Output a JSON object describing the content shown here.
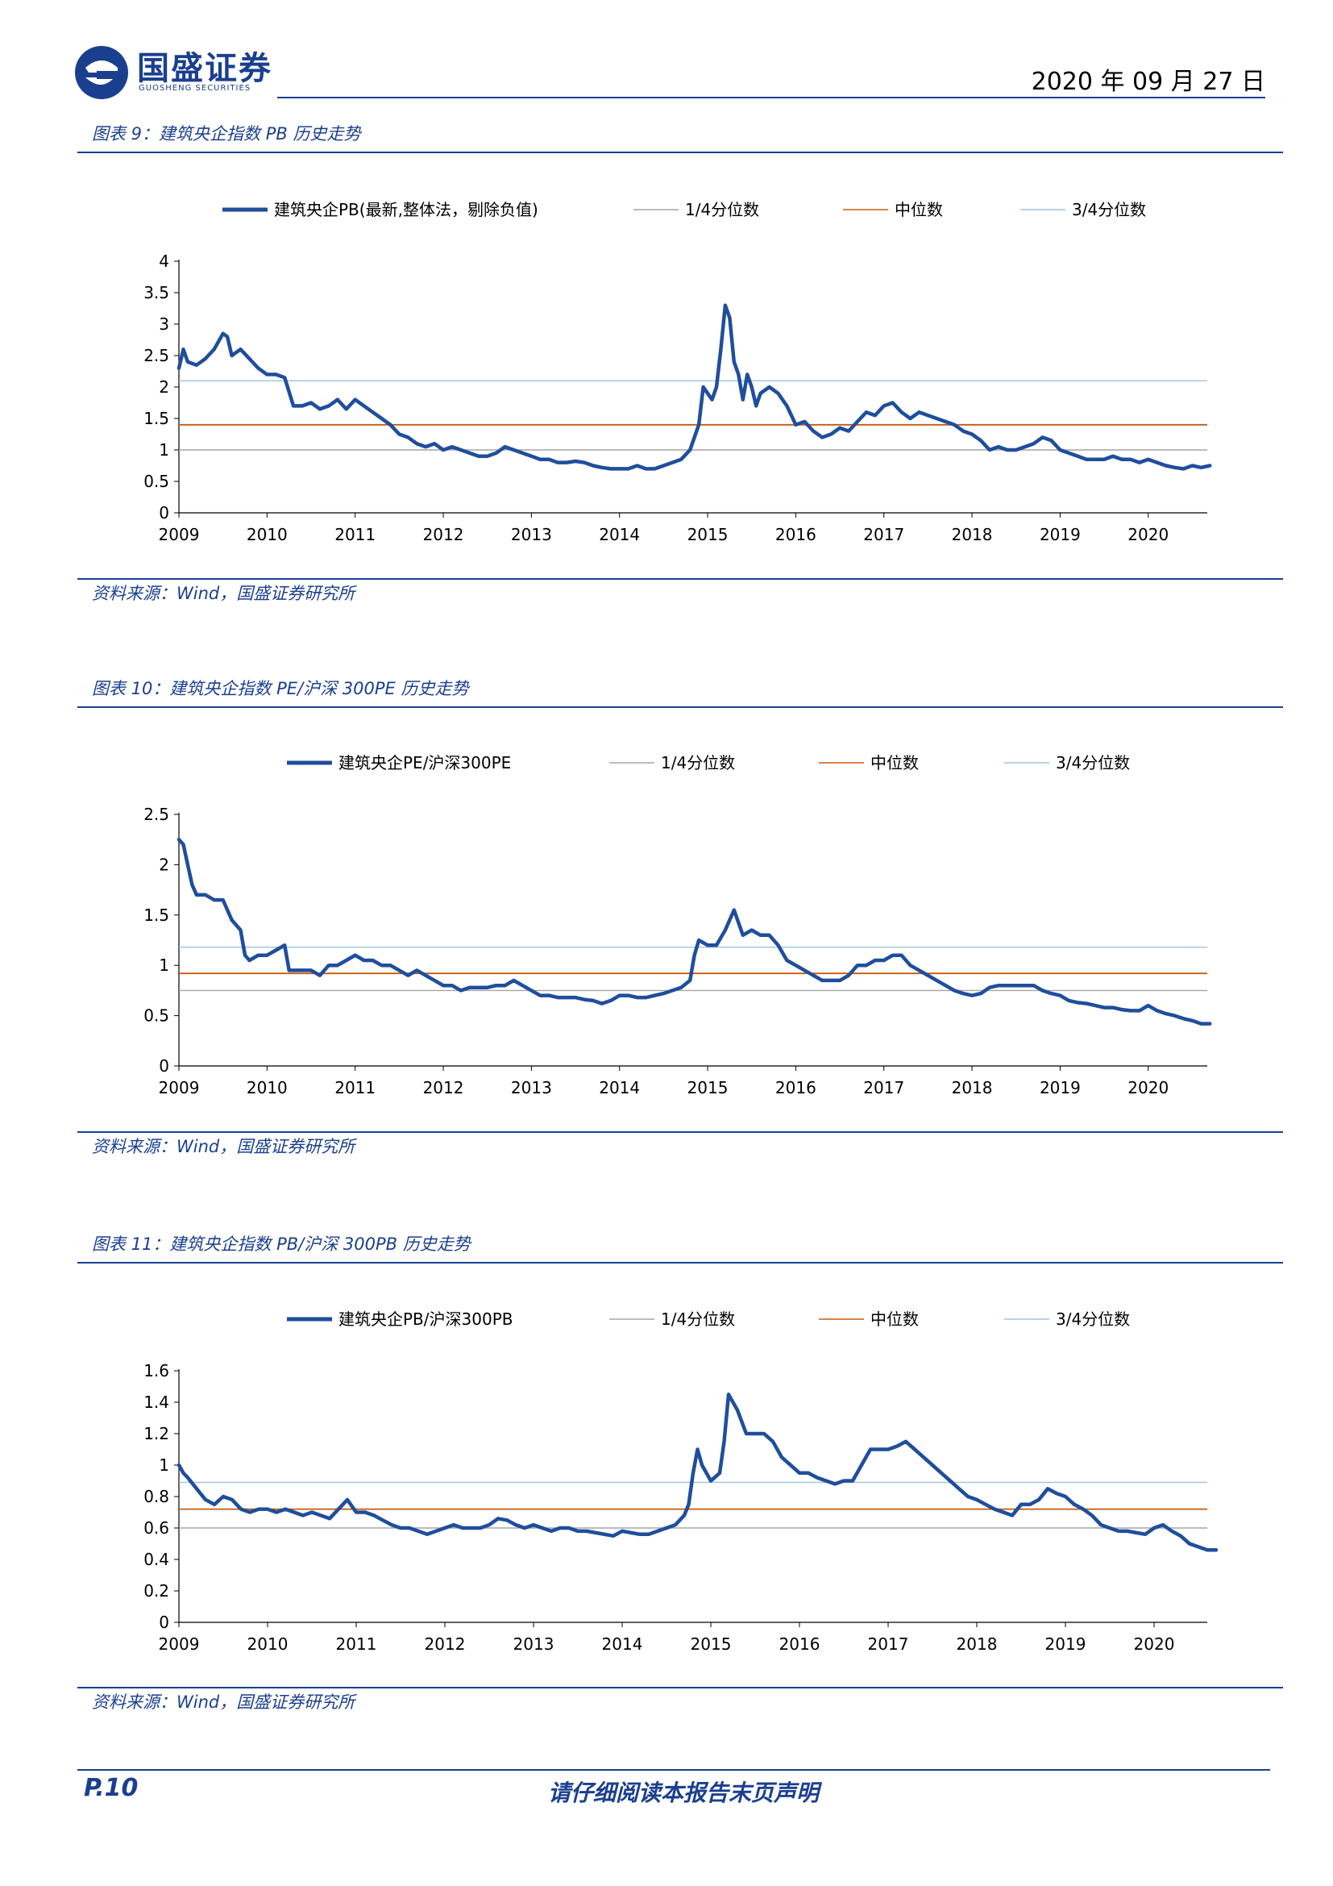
{
  "header": {
    "logo_cn": "国盛证券",
    "logo_en": "GUOSHENG SECURITIES",
    "date": "2020 年 09 月 27 日"
  },
  "colors": {
    "brand": "#1b3f8f",
    "main_series": "#1f4e9c",
    "q1": "#a6a6a6",
    "median": "#c55a11",
    "q3": "#9dc3e6"
  },
  "source_text": "资料来源：Wind，国盛证券研究所",
  "footer": {
    "page": "P.10",
    "note": "请仔细阅读本报告末页声明"
  },
  "chart_data": [
    {
      "caption": "图表 9：建筑央企指数 PB 历史走势",
      "type": "line",
      "legend_placement": "top",
      "series": [
        {
          "name": "建筑央企PB(最新,整体法，剔除负值)",
          "role": "main",
          "x": [
            2009.0,
            2009.05,
            2009.1,
            2009.2,
            2009.3,
            2009.4,
            2009.5,
            2009.55,
            2009.6,
            2009.7,
            2009.8,
            2009.9,
            2010.0,
            2010.1,
            2010.2,
            2010.3,
            2010.4,
            2010.5,
            2010.6,
            2010.7,
            2010.8,
            2010.9,
            2011.0,
            2011.1,
            2011.2,
            2011.3,
            2011.4,
            2011.5,
            2011.6,
            2011.7,
            2011.8,
            2011.9,
            2012.0,
            2012.1,
            2012.2,
            2012.3,
            2012.4,
            2012.5,
            2012.6,
            2012.7,
            2012.8,
            2012.9,
            2013.0,
            2013.1,
            2013.2,
            2013.3,
            2013.4,
            2013.5,
            2013.6,
            2013.7,
            2013.8,
            2013.9,
            2014.0,
            2014.1,
            2014.2,
            2014.3,
            2014.4,
            2014.5,
            2014.6,
            2014.7,
            2014.8,
            2014.9,
            2014.95,
            2015.0,
            2015.05,
            2015.1,
            2015.15,
            2015.2,
            2015.25,
            2015.3,
            2015.35,
            2015.4,
            2015.45,
            2015.5,
            2015.55,
            2015.6,
            2015.7,
            2015.8,
            2015.9,
            2016.0,
            2016.1,
            2016.2,
            2016.3,
            2016.4,
            2016.5,
            2016.6,
            2016.7,
            2016.8,
            2016.9,
            2017.0,
            2017.1,
            2017.2,
            2017.3,
            2017.4,
            2017.5,
            2017.6,
            2017.7,
            2017.8,
            2017.9,
            2018.0,
            2018.1,
            2018.2,
            2018.3,
            2018.4,
            2018.5,
            2018.6,
            2018.7,
            2018.8,
            2018.9,
            2019.0,
            2019.1,
            2019.2,
            2019.3,
            2019.4,
            2019.5,
            2019.6,
            2019.7,
            2019.8,
            2019.9,
            2020.0,
            2020.1,
            2020.2,
            2020.3,
            2020.4,
            2020.5,
            2020.6,
            2020.7
          ],
          "y": [
            2.3,
            2.6,
            2.4,
            2.35,
            2.45,
            2.6,
            2.85,
            2.8,
            2.5,
            2.6,
            2.45,
            2.3,
            2.2,
            2.2,
            2.15,
            1.7,
            1.7,
            1.75,
            1.65,
            1.7,
            1.8,
            1.65,
            1.8,
            1.7,
            1.6,
            1.5,
            1.4,
            1.25,
            1.2,
            1.1,
            1.05,
            1.1,
            1.0,
            1.05,
            1.0,
            0.95,
            0.9,
            0.9,
            0.95,
            1.05,
            1.0,
            0.95,
            0.9,
            0.85,
            0.85,
            0.8,
            0.8,
            0.82,
            0.8,
            0.75,
            0.72,
            0.7,
            0.7,
            0.7,
            0.75,
            0.7,
            0.7,
            0.75,
            0.8,
            0.85,
            1.0,
            1.4,
            2.0,
            1.9,
            1.8,
            2.0,
            2.6,
            3.3,
            3.1,
            2.4,
            2.2,
            1.8,
            2.2,
            2.0,
            1.7,
            1.9,
            2.0,
            1.9,
            1.7,
            1.4,
            1.45,
            1.3,
            1.2,
            1.25,
            1.35,
            1.3,
            1.45,
            1.6,
            1.55,
            1.7,
            1.75,
            1.6,
            1.5,
            1.6,
            1.55,
            1.5,
            1.45,
            1.4,
            1.3,
            1.25,
            1.15,
            1.0,
            1.05,
            1.0,
            1.0,
            1.05,
            1.1,
            1.2,
            1.15,
            1.0,
            0.95,
            0.9,
            0.85,
            0.85,
            0.85,
            0.9,
            0.85,
            0.85,
            0.8,
            0.85,
            0.8,
            0.75,
            0.72,
            0.7,
            0.75,
            0.72,
            0.75
          ]
        },
        {
          "name": "1/4分位数",
          "role": "q1",
          "value": 1.0
        },
        {
          "name": "中位数",
          "role": "median",
          "value": 1.4
        },
        {
          "name": "3/4分位数",
          "role": "q3",
          "value": 2.1
        }
      ],
      "x_ticks": [
        "2009",
        "2010",
        "2011",
        "2012",
        "2013",
        "2014",
        "2015",
        "2016",
        "2017",
        "2018",
        "2019",
        "2020"
      ],
      "xlim": [
        2009,
        2020.67
      ],
      "y_ticks": [
        "0",
        "0.5",
        "1",
        "1.5",
        "2",
        "2.5",
        "3",
        "3.5",
        "4"
      ],
      "ylim": [
        0,
        4
      ],
      "grid": false
    },
    {
      "caption": "图表 10：建筑央企指数 PE/沪深 300PE 历史走势",
      "type": "line",
      "legend_placement": "top",
      "series": [
        {
          "name": "建筑央企PE/沪深300PE",
          "role": "main",
          "x": [
            2009.0,
            2009.05,
            2009.1,
            2009.15,
            2009.2,
            2009.3,
            2009.4,
            2009.5,
            2009.6,
            2009.7,
            2009.75,
            2009.8,
            2009.9,
            2010.0,
            2010.1,
            2010.2,
            2010.25,
            2010.3,
            2010.4,
            2010.5,
            2010.6,
            2010.7,
            2010.8,
            2010.9,
            2011.0,
            2011.1,
            2011.2,
            2011.3,
            2011.4,
            2011.5,
            2011.6,
            2011.7,
            2011.8,
            2011.9,
            2012.0,
            2012.1,
            2012.2,
            2012.3,
            2012.4,
            2012.5,
            2012.6,
            2012.7,
            2012.8,
            2012.9,
            2013.0,
            2013.1,
            2013.2,
            2013.3,
            2013.4,
            2013.5,
            2013.6,
            2013.7,
            2013.8,
            2013.9,
            2014.0,
            2014.1,
            2014.2,
            2014.3,
            2014.4,
            2014.5,
            2014.6,
            2014.7,
            2014.8,
            2014.85,
            2014.9,
            2015.0,
            2015.1,
            2015.2,
            2015.3,
            2015.4,
            2015.5,
            2015.6,
            2015.7,
            2015.8,
            2015.9,
            2016.0,
            2016.1,
            2016.2,
            2016.3,
            2016.4,
            2016.5,
            2016.6,
            2016.7,
            2016.8,
            2016.9,
            2017.0,
            2017.1,
            2017.2,
            2017.3,
            2017.4,
            2017.5,
            2017.6,
            2017.7,
            2017.8,
            2017.9,
            2018.0,
            2018.1,
            2018.2,
            2018.3,
            2018.4,
            2018.5,
            2018.6,
            2018.7,
            2018.8,
            2018.9,
            2019.0,
            2019.1,
            2019.2,
            2019.3,
            2019.4,
            2019.5,
            2019.6,
            2019.7,
            2019.8,
            2019.9,
            2020.0,
            2020.1,
            2020.2,
            2020.3,
            2020.4,
            2020.5,
            2020.6,
            2020.7
          ],
          "y": [
            2.25,
            2.2,
            2.0,
            1.8,
            1.7,
            1.7,
            1.65,
            1.65,
            1.45,
            1.35,
            1.1,
            1.05,
            1.1,
            1.1,
            1.15,
            1.2,
            0.95,
            0.95,
            0.95,
            0.95,
            0.9,
            1.0,
            1.0,
            1.05,
            1.1,
            1.05,
            1.05,
            1.0,
            1.0,
            0.95,
            0.9,
            0.95,
            0.9,
            0.85,
            0.8,
            0.8,
            0.75,
            0.78,
            0.78,
            0.78,
            0.8,
            0.8,
            0.85,
            0.8,
            0.75,
            0.7,
            0.7,
            0.68,
            0.68,
            0.68,
            0.66,
            0.65,
            0.62,
            0.65,
            0.7,
            0.7,
            0.68,
            0.68,
            0.7,
            0.72,
            0.75,
            0.78,
            0.85,
            1.1,
            1.25,
            1.2,
            1.2,
            1.35,
            1.55,
            1.3,
            1.35,
            1.3,
            1.3,
            1.2,
            1.05,
            1.0,
            0.95,
            0.9,
            0.85,
            0.85,
            0.85,
            0.9,
            1.0,
            1.0,
            1.05,
            1.05,
            1.1,
            1.1,
            1.0,
            0.95,
            0.9,
            0.85,
            0.8,
            0.75,
            0.72,
            0.7,
            0.72,
            0.78,
            0.8,
            0.8,
            0.8,
            0.8,
            0.8,
            0.75,
            0.72,
            0.7,
            0.65,
            0.63,
            0.62,
            0.6,
            0.58,
            0.58,
            0.56,
            0.55,
            0.55,
            0.6,
            0.55,
            0.52,
            0.5,
            0.47,
            0.45,
            0.42,
            0.42
          ]
        },
        {
          "name": "1/4分位数",
          "role": "q1",
          "value": 0.75
        },
        {
          "name": "中位数",
          "role": "median",
          "value": 0.92
        },
        {
          "name": "3/4分位数",
          "role": "q3",
          "value": 1.18
        }
      ],
      "x_ticks": [
        "2009",
        "2010",
        "2011",
        "2012",
        "2013",
        "2014",
        "2015",
        "2016",
        "2017",
        "2018",
        "2019",
        "2020"
      ],
      "xlim": [
        2009,
        2020.67
      ],
      "y_ticks": [
        "0",
        "0.5",
        "1",
        "1.5",
        "2",
        "2.5"
      ],
      "ylim": [
        0,
        2.5
      ],
      "grid": false
    },
    {
      "caption": "图表 11：建筑央企指数 PB/沪深 300PB 历史走势",
      "type": "line",
      "legend_placement": "top",
      "series": [
        {
          "name": "建筑央企PB/沪深300PB",
          "role": "main",
          "x": [
            2009.0,
            2009.05,
            2009.1,
            2009.2,
            2009.3,
            2009.4,
            2009.5,
            2009.6,
            2009.7,
            2009.8,
            2009.9,
            2010.0,
            2010.1,
            2010.2,
            2010.3,
            2010.4,
            2010.5,
            2010.6,
            2010.7,
            2010.8,
            2010.9,
            2011.0,
            2011.1,
            2011.2,
            2011.3,
            2011.4,
            2011.5,
            2011.6,
            2011.7,
            2011.8,
            2011.9,
            2012.0,
            2012.1,
            2012.2,
            2012.3,
            2012.4,
            2012.5,
            2012.6,
            2012.7,
            2012.8,
            2012.9,
            2013.0,
            2013.1,
            2013.2,
            2013.3,
            2013.4,
            2013.5,
            2013.6,
            2013.7,
            2013.8,
            2013.9,
            2014.0,
            2014.1,
            2014.2,
            2014.3,
            2014.4,
            2014.5,
            2014.6,
            2014.7,
            2014.75,
            2014.8,
            2014.85,
            2014.9,
            2015.0,
            2015.1,
            2015.15,
            2015.2,
            2015.3,
            2015.4,
            2015.5,
            2015.6,
            2015.7,
            2015.8,
            2015.9,
            2016.0,
            2016.1,
            2016.2,
            2016.3,
            2016.4,
            2016.5,
            2016.6,
            2016.7,
            2016.8,
            2016.9,
            2017.0,
            2017.1,
            2017.2,
            2017.3,
            2017.4,
            2017.5,
            2017.6,
            2017.7,
            2017.8,
            2017.9,
            2018.0,
            2018.1,
            2018.2,
            2018.3,
            2018.4,
            2018.5,
            2018.6,
            2018.7,
            2018.8,
            2018.9,
            2019.0,
            2019.1,
            2019.2,
            2019.3,
            2019.4,
            2019.5,
            2019.6,
            2019.7,
            2019.8,
            2019.9,
            2020.0,
            2020.1,
            2020.2,
            2020.3,
            2020.4,
            2020.5,
            2020.6,
            2020.7
          ],
          "y": [
            1.0,
            0.95,
            0.92,
            0.85,
            0.78,
            0.75,
            0.8,
            0.78,
            0.72,
            0.7,
            0.72,
            0.72,
            0.7,
            0.72,
            0.7,
            0.68,
            0.7,
            0.68,
            0.66,
            0.72,
            0.78,
            0.7,
            0.7,
            0.68,
            0.65,
            0.62,
            0.6,
            0.6,
            0.58,
            0.56,
            0.58,
            0.6,
            0.62,
            0.6,
            0.6,
            0.6,
            0.62,
            0.66,
            0.65,
            0.62,
            0.6,
            0.62,
            0.6,
            0.58,
            0.6,
            0.6,
            0.58,
            0.58,
            0.57,
            0.56,
            0.55,
            0.58,
            0.57,
            0.56,
            0.56,
            0.58,
            0.6,
            0.62,
            0.68,
            0.75,
            0.95,
            1.1,
            1.0,
            0.9,
            0.95,
            1.15,
            1.45,
            1.35,
            1.2,
            1.2,
            1.2,
            1.15,
            1.05,
            1.0,
            0.95,
            0.95,
            0.92,
            0.9,
            0.88,
            0.9,
            0.9,
            1.0,
            1.1,
            1.1,
            1.1,
            1.12,
            1.15,
            1.1,
            1.05,
            1.0,
            0.95,
            0.9,
            0.85,
            0.8,
            0.78,
            0.75,
            0.72,
            0.7,
            0.68,
            0.75,
            0.75,
            0.78,
            0.85,
            0.82,
            0.8,
            0.75,
            0.72,
            0.68,
            0.62,
            0.6,
            0.58,
            0.58,
            0.57,
            0.56,
            0.6,
            0.62,
            0.58,
            0.55,
            0.5,
            0.48,
            0.46,
            0.46
          ]
        },
        {
          "name": "1/4分位数",
          "role": "q1",
          "value": 0.6
        },
        {
          "name": "中位数",
          "role": "median",
          "value": 0.72
        },
        {
          "name": "3/4分位数",
          "role": "q3",
          "value": 0.89
        }
      ],
      "x_ticks": [
        "2009",
        "2010",
        "2011",
        "2012",
        "2013",
        "2014",
        "2015",
        "2016",
        "2017",
        "2018",
        "2019",
        "2020"
      ],
      "xlim": [
        2009,
        2020.6
      ],
      "y_ticks": [
        "0",
        "0.2",
        "0.4",
        "0.6",
        "0.8",
        "1",
        "1.2",
        "1.4",
        "1.6"
      ],
      "ylim": [
        0,
        1.6
      ],
      "grid": false
    }
  ]
}
